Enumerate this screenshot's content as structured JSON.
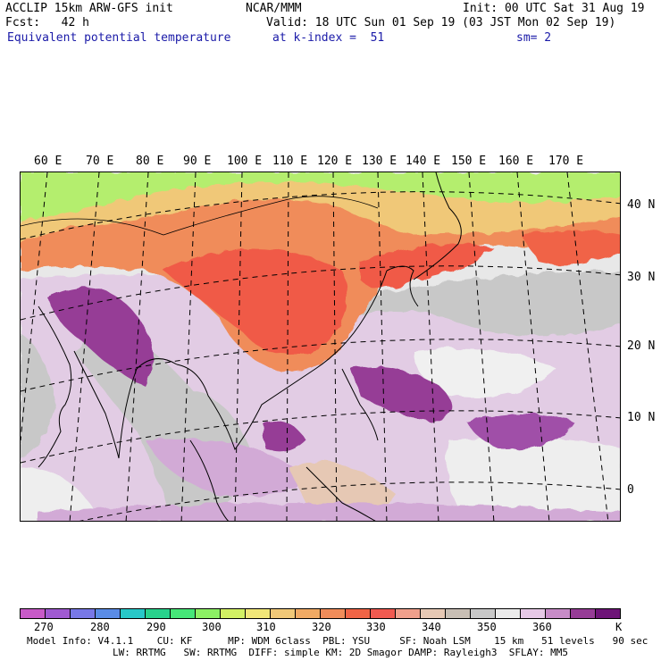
{
  "header": {
    "model": "ACCLIP 15km ARW-GFS init",
    "org": "NCAR/MMM",
    "init": "Init: 00 UTC Sat 31 Aug 19",
    "fcst": "Fcst:   42 h",
    "valid": "Valid: 18 UTC Sun 01 Sep 19 (03 JST Mon 02 Sep 19)",
    "field": "Equivalent potential temperature",
    "level": "at k-index =  51",
    "smooth": "sm= 2"
  },
  "map": {
    "lon_labels": [
      "60 E",
      "70 E",
      "80 E",
      "90 E",
      "100 E",
      "110 E",
      "120 E",
      "130 E",
      "140 E",
      "150 E",
      "160 E",
      "170 E"
    ],
    "lat_labels": [
      "40 N",
      "30 N",
      "20 N",
      "10 N",
      "0"
    ]
  },
  "colorbar": {
    "colors": [
      "#c85ac8",
      "#a05ad2",
      "#7878e6",
      "#5a8ce6",
      "#28c8c8",
      "#28d28c",
      "#46e678",
      "#8cf064",
      "#d2f064",
      "#f0e678",
      "#f0c878",
      "#f0aa64",
      "#f08c5a",
      "#f06446",
      "#f05a50",
      "#f0a08c",
      "#e6c8b4",
      "#c8beb4",
      "#c8c8c8",
      "#ebebeb",
      "#e6c8e6",
      "#c88cc8",
      "#963c96",
      "#6e1478"
    ],
    "labels": [
      "270",
      "280",
      "290",
      "300",
      "310",
      "320",
      "330",
      "340",
      "350",
      "360",
      "K"
    ]
  },
  "footer": {
    "line1": "Model Info: V4.1.1    CU: KF      MP: WDM 6class  PBL: YSU     SF: Noah LSM    15 km   51 levels   90 sec",
    "line2": "LW: RRTMG   SW: RRTMG  DIFF: simple KM: 2D Smagor DAMP: Rayleigh3  SFLAY: MM5"
  }
}
